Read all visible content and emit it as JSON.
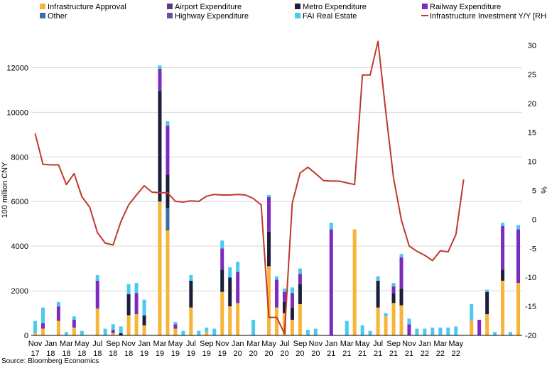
{
  "chart_data": {
    "type": "bar",
    "stacked": true,
    "ylabel": "100 million CNY",
    "y2label": "%",
    "ylim": [
      0,
      13000
    ],
    "y2lim": [
      -20,
      30
    ],
    "yticks": [
      "0",
      "2000",
      "4000",
      "6000",
      "8000",
      "10000",
      "12000"
    ],
    "y2ticks": [
      "-20",
      "-15",
      "-10",
      "-5",
      "0",
      "5",
      "10",
      "15",
      "20",
      "25",
      "30"
    ],
    "source": "Source: Bloomberg Economics",
    "xlabels": [
      {
        "index": 0,
        "month": "Nov",
        "year": "17"
      },
      {
        "index": 2,
        "month": "Jan",
        "year": "18"
      },
      {
        "index": 4,
        "month": "Mar",
        "year": "18"
      },
      {
        "index": 6,
        "month": "May",
        "year": "18"
      },
      {
        "index": 8,
        "month": "Jul",
        "year": "18"
      },
      {
        "index": 10,
        "month": "Sep",
        "year": "18"
      },
      {
        "index": 12,
        "month": "Nov",
        "year": "18"
      },
      {
        "index": 14,
        "month": "Jan",
        "year": "19"
      },
      {
        "index": 16,
        "month": "Mar",
        "year": "19"
      },
      {
        "index": 18,
        "month": "May",
        "year": "19"
      },
      {
        "index": 20,
        "month": "Jul",
        "year": "19"
      },
      {
        "index": 22,
        "month": "Sep",
        "year": "19"
      },
      {
        "index": 24,
        "month": "Nov",
        "year": "19"
      },
      {
        "index": 26,
        "month": "Jan",
        "year": "20"
      },
      {
        "index": 28,
        "month": "Mar",
        "year": "20"
      },
      {
        "index": 30,
        "month": "May",
        "year": "20"
      },
      {
        "index": 32,
        "month": "Jul",
        "year": "20"
      },
      {
        "index": 34,
        "month": "Sep",
        "year": "20"
      },
      {
        "index": 36,
        "month": "Nov",
        "year": "20"
      },
      {
        "index": 38,
        "month": "Jan",
        "year": "21"
      },
      {
        "index": 40,
        "month": "Mar",
        "year": "21"
      },
      {
        "index": 42,
        "month": "May",
        "year": "21"
      },
      {
        "index": 44,
        "month": "Jul",
        "year": "21"
      },
      {
        "index": 46,
        "month": "Sep",
        "year": "21"
      },
      {
        "index": 48,
        "month": "Nov",
        "year": "21"
      },
      {
        "index": 50,
        "month": "Jan",
        "year": "22"
      },
      {
        "index": 52,
        "month": "Mar",
        "year": "22"
      },
      {
        "index": 54,
        "month": "May",
        "year": "22"
      }
    ],
    "series": [
      {
        "name": "Infrastructure Approval",
        "color": "#F7B538",
        "values": [
          100,
          300,
          0,
          650,
          0,
          350,
          0,
          0,
          1200,
          0,
          100,
          0,
          900,
          950,
          450,
          0,
          6000,
          4700,
          300,
          0,
          1250,
          0,
          150,
          0,
          1950,
          1300,
          1450,
          0,
          0,
          0,
          3100,
          1250,
          1000,
          700,
          1400,
          0,
          0,
          0,
          0,
          0,
          0,
          4750,
          0,
          0,
          1250,
          850,
          1450,
          1350,
          0,
          0,
          0,
          0,
          0,
          0,
          0,
          0,
          650,
          0,
          950,
          0,
          2450,
          0,
          2350
        ]
      },
      {
        "name": "Other",
        "color": "#3A6EA5",
        "values": [
          0,
          0,
          0,
          0,
          0,
          0,
          0,
          0,
          0,
          0,
          0,
          0,
          0,
          0,
          0,
          0,
          0,
          1000,
          0,
          0,
          0,
          0,
          0,
          0,
          0,
          0,
          0,
          0,
          0,
          0,
          0,
          0,
          0,
          0,
          0,
          0,
          0,
          0,
          0,
          0,
          0,
          0,
          0,
          0,
          0,
          0,
          0,
          0,
          0,
          0,
          0,
          0,
          0,
          0,
          0,
          0,
          0,
          0,
          0,
          0,
          0,
          0,
          0
        ]
      },
      {
        "name": "Airport Expenditure",
        "color": "#5B3A8C",
        "values": [
          0,
          0,
          0,
          0,
          0,
          0,
          0,
          0,
          0,
          0,
          0,
          0,
          0,
          0,
          0,
          0,
          0,
          0,
          0,
          0,
          0,
          0,
          0,
          0,
          0,
          0,
          0,
          0,
          0,
          0,
          0,
          0,
          0,
          0,
          0,
          0,
          0,
          0,
          0,
          0,
          0,
          0,
          0,
          0,
          0,
          0,
          0,
          0,
          0,
          0,
          0,
          0,
          0,
          0,
          0,
          0,
          0,
          0,
          0,
          0,
          0,
          0,
          0
        ]
      },
      {
        "name": "Metro Expenditure",
        "color": "#1B1F3B",
        "values": [
          0,
          0,
          0,
          0,
          0,
          0,
          0,
          0,
          0,
          0,
          0,
          100,
          950,
          0,
          450,
          0,
          4950,
          1500,
          0,
          0,
          1200,
          0,
          0,
          0,
          1000,
          1300,
          0,
          0,
          0,
          0,
          1550,
          0,
          500,
          550,
          900,
          0,
          0,
          0,
          0,
          0,
          0,
          0,
          0,
          0,
          1200,
          0,
          450,
          750,
          0,
          0,
          0,
          0,
          0,
          0,
          0,
          0,
          0,
          0,
          1000,
          0,
          500,
          0,
          0
        ]
      },
      {
        "name": "Railway Expenditure",
        "color": "#7B2CBF",
        "values": [
          0,
          250,
          0,
          650,
          0,
          350,
          0,
          0,
          1250,
          0,
          150,
          0,
          0,
          950,
          0,
          0,
          1000,
          2200,
          200,
          0,
          0,
          0,
          0,
          0,
          950,
          0,
          1400,
          0,
          0,
          0,
          1550,
          1250,
          450,
          650,
          450,
          0,
          0,
          0,
          4750,
          0,
          0,
          0,
          0,
          0,
          0,
          0,
          300,
          1400,
          500,
          0,
          0,
          0,
          0,
          0,
          0,
          0,
          0,
          700,
          0,
          0,
          1950,
          0,
          2400
        ]
      },
      {
        "name": "Highway Expenditure",
        "color": "#6E4C9F",
        "values": [
          0,
          0,
          0,
          0,
          0,
          0,
          0,
          0,
          0,
          0,
          0,
          0,
          0,
          0,
          0,
          0,
          0,
          0,
          0,
          0,
          0,
          0,
          0,
          0,
          0,
          0,
          0,
          0,
          0,
          0,
          0,
          0,
          0,
          0,
          0,
          0,
          0,
          0,
          0,
          0,
          0,
          0,
          0,
          0,
          0,
          0,
          0,
          0,
          0,
          0,
          0,
          0,
          0,
          0,
          0,
          0,
          0,
          0,
          0,
          0,
          0,
          0,
          0
        ]
      },
      {
        "name": "FAI Real Estate",
        "color": "#4CC9F0",
        "values": [
          550,
          700,
          0,
          200,
          150,
          150,
          200,
          0,
          250,
          300,
          250,
          300,
          450,
          450,
          700,
          0,
          150,
          200,
          100,
          200,
          250,
          200,
          200,
          300,
          350,
          450,
          450,
          0,
          700,
          0,
          100,
          150,
          150,
          250,
          250,
          250,
          300,
          0,
          300,
          0,
          650,
          0,
          450,
          200,
          200,
          150,
          150,
          150,
          250,
          300,
          300,
          350,
          350,
          350,
          400,
          0,
          750,
          0,
          100,
          150,
          150,
          150,
          200
        ]
      },
      {
        "name": "Infrastructure Investment Y/Y [RHS]",
        "color": "#C0392B",
        "axis": "right",
        "values": [
          14.8,
          9.5,
          9.4,
          9.4,
          6.0,
          7.9,
          3.9,
          2.1,
          -2.3,
          -4.1,
          -4.4,
          -0.4,
          2.5,
          4.2,
          5.8,
          4.7,
          4.6,
          4.6,
          3.1,
          3.0,
          3.2,
          3.1,
          4.0,
          4.3,
          4.2,
          4.2,
          4.3,
          4.2,
          3.6,
          2.5,
          -16.9,
          -16.9,
          -19.7,
          2.8,
          8.0,
          9.0,
          7.9,
          6.7,
          6.6,
          6.6,
          6.3,
          6.0,
          24.9,
          24.9,
          30.7,
          18.5,
          7.1,
          -0.1,
          -4.6,
          -5.5,
          -6.2,
          -7.1,
          -5.4,
          -5.6,
          -2.6,
          6.9,
          null,
          null,
          null,
          null,
          null,
          null,
          null
        ]
      }
    ]
  },
  "legend": [
    {
      "label": "Infrastructure Approval",
      "color": "#F7B538",
      "kind": "box"
    },
    {
      "label": "Airport Expenditure",
      "color": "#5B3A8C",
      "kind": "box"
    },
    {
      "label": "Metro Expenditure",
      "color": "#1B1F3B",
      "kind": "box"
    },
    {
      "label": "Railway Expenditure",
      "color": "#7B2CBF",
      "kind": "box"
    },
    {
      "label": "Other",
      "color": "#3A6EA5",
      "kind": "box"
    },
    {
      "label": "Highway Expenditure",
      "color": "#6E4C9F",
      "kind": "box"
    },
    {
      "label": "FAI Real Estate",
      "color": "#4CC9F0",
      "kind": "box"
    },
    {
      "label": "Infrastructure Investment Y/Y [RHS]",
      "color": "#C0392B",
      "kind": "line"
    }
  ]
}
